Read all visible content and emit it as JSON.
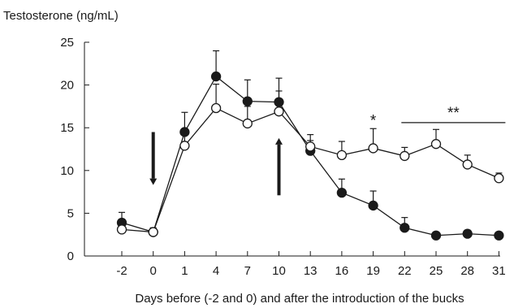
{
  "chart_data": {
    "type": "line",
    "ylabel": "Testosterone (ng/mL)",
    "xlabel": "Days before (-2 and 0)  and after the introduction of the bucks",
    "categories": [
      "-2",
      "0",
      "1",
      "4",
      "7",
      "10",
      "13",
      "16",
      "19",
      "22",
      "25",
      "28",
      "31"
    ],
    "ylim": [
      0,
      25
    ],
    "yticks": [
      "0",
      "5",
      "10",
      "15",
      "20",
      "25"
    ],
    "grid": false,
    "series": [
      {
        "marker": "filled-circle",
        "values": [
          3.9,
          2.8,
          14.5,
          21.0,
          18.1,
          18.0,
          12.3,
          7.4,
          5.9,
          3.3,
          2.4,
          2.6,
          2.4
        ],
        "error": [
          1.2,
          0.5,
          2.3,
          3.0,
          2.5,
          2.8,
          1.2,
          1.6,
          1.7,
          1.2,
          0.4,
          0.4,
          0.3
        ]
      },
      {
        "marker": "open-circle",
        "values": [
          3.1,
          2.8,
          12.9,
          17.3,
          15.5,
          16.9,
          12.8,
          11.8,
          12.6,
          11.7,
          13.1,
          10.7,
          9.1
        ],
        "error": [
          1.2,
          0.4,
          1.9,
          2.8,
          2.0,
          2.4,
          1.4,
          1.6,
          2.3,
          1.0,
          1.7,
          1.1,
          0.6
        ]
      }
    ],
    "annotations": [
      {
        "text": "*",
        "category": "19",
        "y": 16.2
      },
      {
        "text": "**",
        "from": "22",
        "to": "31",
        "y": 15.6
      }
    ],
    "arrows": [
      {
        "category": "0",
        "direction": "down",
        "from_y": 14.5,
        "to_y": 8.3
      },
      {
        "category": "10",
        "direction": "up",
        "from_y": 7.1,
        "to_y": 13.8
      }
    ]
  }
}
